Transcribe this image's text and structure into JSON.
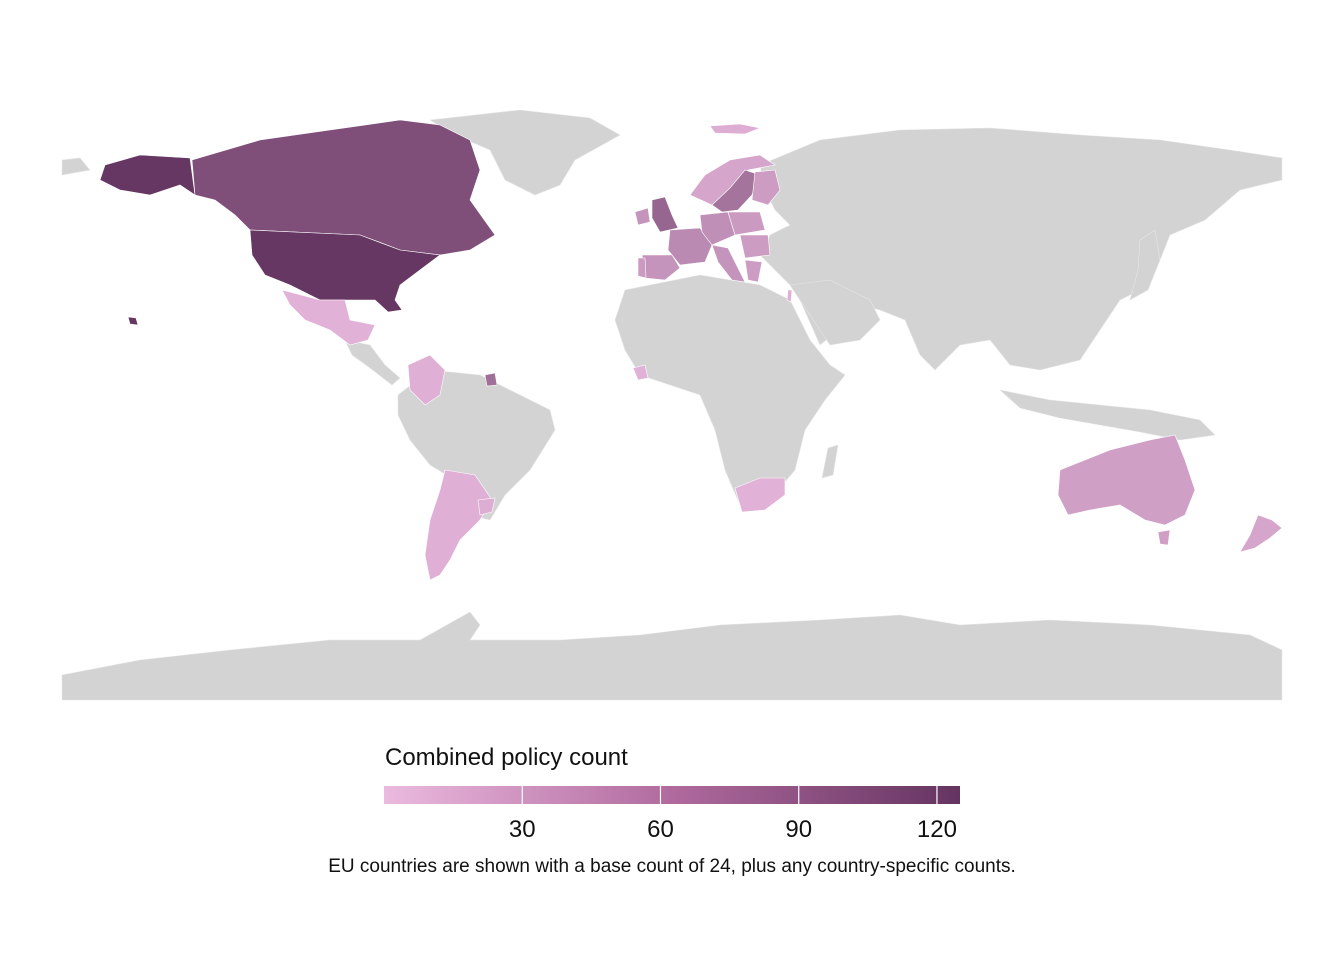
{
  "map": {
    "background_land_color": "#d3d3d3",
    "no_data_label": "",
    "scale": {
      "min": 0,
      "max": 125,
      "low_color": "#ebbadf",
      "high_color": "#643461"
    },
    "regions": [
      {
        "name": "United States",
        "value": 122
      },
      {
        "name": "Alaska",
        "value": 122
      },
      {
        "name": "Hawaii",
        "value": 122
      },
      {
        "name": "Canada",
        "value": 100
      },
      {
        "name": "Mexico",
        "value": 8
      },
      {
        "name": "Colombia",
        "value": 10
      },
      {
        "name": "French Guiana",
        "value": 70
      },
      {
        "name": "Argentina",
        "value": 10
      },
      {
        "name": "Uruguay",
        "value": 12
      },
      {
        "name": "United Kingdom",
        "value": 78
      },
      {
        "name": "Ireland",
        "value": 35
      },
      {
        "name": "France",
        "value": 45
      },
      {
        "name": "Spain",
        "value": 35
      },
      {
        "name": "Portugal",
        "value": 30
      },
      {
        "name": "Germany",
        "value": 40
      },
      {
        "name": "Italy",
        "value": 35
      },
      {
        "name": "Poland",
        "value": 30
      },
      {
        "name": "Sweden",
        "value": 65
      },
      {
        "name": "Norway",
        "value": 20
      },
      {
        "name": "Finland",
        "value": 28
      },
      {
        "name": "Iceland",
        "value": 12
      },
      {
        "name": "Romania",
        "value": 28
      },
      {
        "name": "Greece",
        "value": 28
      },
      {
        "name": "Israel",
        "value": 10
      },
      {
        "name": "Sierra Leone",
        "value": 8
      },
      {
        "name": "South Africa",
        "value": 8
      },
      {
        "name": "Australia",
        "value": 25
      },
      {
        "name": "New Zealand",
        "value": 20
      }
    ]
  },
  "legend": {
    "title": "Combined policy count",
    "ticks": [
      {
        "value": 30,
        "label": "30"
      },
      {
        "value": 60,
        "label": "60"
      },
      {
        "value": 90,
        "label": "90"
      },
      {
        "value": 120,
        "label": "120"
      }
    ]
  },
  "caption": "EU countries are shown with a base count of 24, plus any country-specific counts."
}
